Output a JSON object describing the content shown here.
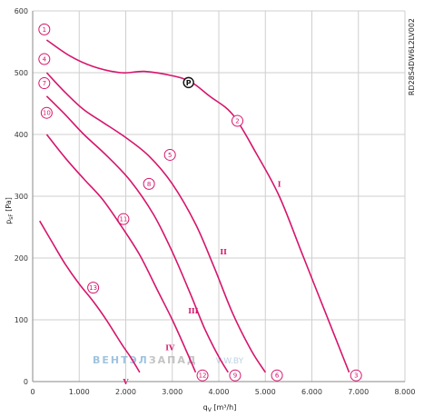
{
  "chart_data": {
    "type": "line",
    "title": "",
    "xlabel": "q",
    "xlabel_sub": "V",
    "xlabel_unit": " [m³/h]",
    "ylabel": "p",
    "ylabel_sub": "sF",
    "ylabel_unit": " [Pa]",
    "xlim": [
      0,
      8000
    ],
    "ylim": [
      0,
      600
    ],
    "x_ticks": [
      {
        "value": 0,
        "label": "0"
      },
      {
        "value": 1000,
        "label": "1.000"
      },
      {
        "value": 2000,
        "label": "2.000"
      },
      {
        "value": 3000,
        "label": "3.000"
      },
      {
        "value": 4000,
        "label": "4.000"
      },
      {
        "value": 5000,
        "label": "5.000"
      },
      {
        "value": 6000,
        "label": "6.000"
      },
      {
        "value": 7000,
        "label": "7.000"
      },
      {
        "value": 8000,
        "label": "8.000"
      }
    ],
    "y_ticks": [
      {
        "value": 0,
        "label": "0"
      },
      {
        "value": 100,
        "label": "100"
      },
      {
        "value": 200,
        "label": "200"
      },
      {
        "value": 300,
        "label": "300"
      },
      {
        "value": 400,
        "label": "400"
      },
      {
        "value": 500,
        "label": "500"
      },
      {
        "value": 600,
        "label": "600"
      }
    ],
    "grid": true,
    "model": "RD28S4DW6L2LV002",
    "series": [
      {
        "name": "I",
        "label_at": [
          5300,
          320
        ],
        "points": [
          [
            300,
            553
          ],
          [
            800,
            527
          ],
          [
            1300,
            510
          ],
          [
            1900,
            500
          ],
          [
            2400,
            502
          ],
          [
            3000,
            495
          ],
          [
            3400,
            485
          ],
          [
            3800,
            462
          ],
          [
            4300,
            432
          ],
          [
            4800,
            370
          ],
          [
            5300,
            300
          ],
          [
            5800,
            205
          ],
          [
            6300,
            110
          ],
          [
            6800,
            15
          ]
        ]
      },
      {
        "name": "II",
        "label_at": [
          4100,
          210
        ],
        "points": [
          [
            300,
            500
          ],
          [
            700,
            468
          ],
          [
            1100,
            440
          ],
          [
            1500,
            420
          ],
          [
            2000,
            395
          ],
          [
            2500,
            365
          ],
          [
            3000,
            320
          ],
          [
            3500,
            255
          ],
          [
            3900,
            185
          ],
          [
            4300,
            110
          ],
          [
            4700,
            50
          ],
          [
            5000,
            15
          ]
        ]
      },
      {
        "name": "III",
        "label_at": [
          3450,
          115
        ],
        "points": [
          [
            300,
            462
          ],
          [
            700,
            432
          ],
          [
            1100,
            400
          ],
          [
            1600,
            365
          ],
          [
            2100,
            325
          ],
          [
            2600,
            270
          ],
          [
            3000,
            210
          ],
          [
            3400,
            140
          ],
          [
            3700,
            85
          ],
          [
            4000,
            40
          ],
          [
            4200,
            15
          ]
        ]
      },
      {
        "name": "IV",
        "label_at": [
          2950,
          55
        ],
        "points": [
          [
            300,
            400
          ],
          [
            700,
            362
          ],
          [
            1100,
            328
          ],
          [
            1500,
            295
          ],
          [
            1900,
            252
          ],
          [
            2300,
            205
          ],
          [
            2700,
            145
          ],
          [
            3000,
            100
          ],
          [
            3300,
            50
          ],
          [
            3500,
            15
          ]
        ]
      },
      {
        "name": "V",
        "label_at": [
          2000,
          0
        ],
        "points": [
          [
            150,
            260
          ],
          [
            400,
            228
          ],
          [
            700,
            190
          ],
          [
            1000,
            158
          ],
          [
            1300,
            130
          ],
          [
            1600,
            98
          ],
          [
            1900,
            62
          ],
          [
            2100,
            40
          ],
          [
            2300,
            15
          ]
        ]
      }
    ],
    "markers": [
      {
        "label": "1",
        "x": 250,
        "y": 570
      },
      {
        "label": "2",
        "x": 4400,
        "y": 422
      },
      {
        "label": "3",
        "x": 6950,
        "y": 10
      },
      {
        "label": "4",
        "x": 250,
        "y": 522
      },
      {
        "label": "5",
        "x": 2950,
        "y": 367
      },
      {
        "label": "6",
        "x": 5250,
        "y": 10
      },
      {
        "label": "7",
        "x": 250,
        "y": 483
      },
      {
        "label": "8",
        "x": 2500,
        "y": 320
      },
      {
        "label": "9",
        "x": 4350,
        "y": 10
      },
      {
        "label": "10",
        "x": 300,
        "y": 435
      },
      {
        "label": "11",
        "x": 1950,
        "y": 263
      },
      {
        "label": "12",
        "x": 3650,
        "y": 10
      },
      {
        "label": "13",
        "x": 1300,
        "y": 152
      }
    ],
    "operating_point": {
      "label": "Ⓟ",
      "x": 3350,
      "y": 484
    }
  },
  "watermark": {
    "part_a": "ВЕНТЭЛ",
    "part_b": "ЗАПАД",
    "part_c": "V-W.BY"
  }
}
